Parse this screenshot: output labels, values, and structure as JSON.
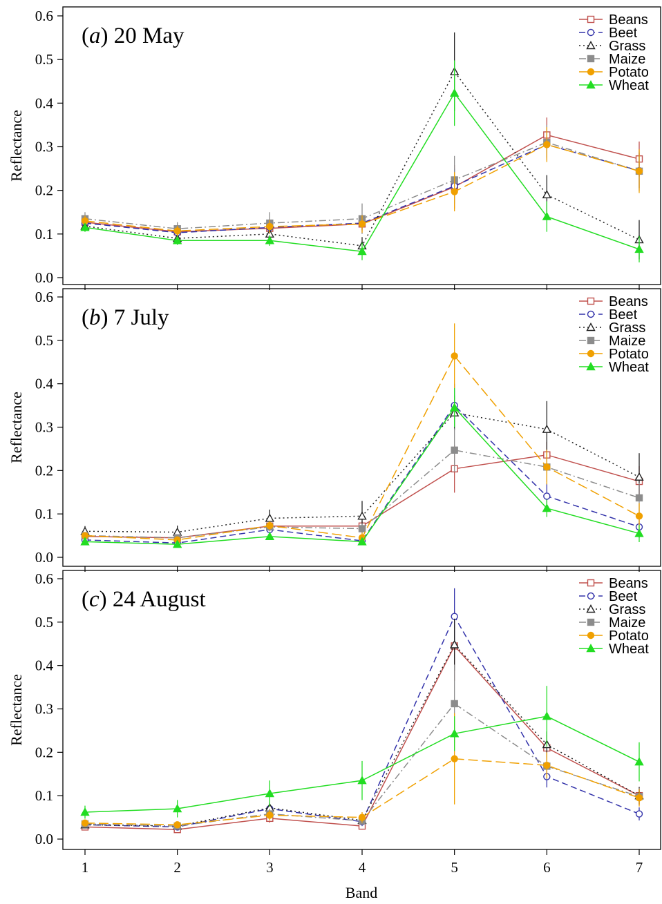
{
  "figure": {
    "xlabel": "Band"
  },
  "chart_data": [
    {
      "type": "line",
      "title_letter": "a",
      "title_rest": " 20 May",
      "xlabel": "Band",
      "ylabel": "Reflectance",
      "x": [
        1,
        2,
        3,
        4,
        5,
        6,
        7
      ],
      "ylim": [
        0,
        0.6
      ],
      "yticks": [
        "0.0",
        "0.1",
        "0.2",
        "0.3",
        "0.4",
        "0.5",
        "0.6"
      ],
      "legend_position": "top-right",
      "series": [
        {
          "name": "Beans",
          "color": "#c0504d",
          "marker": "square-open",
          "dash": "solid",
          "values": [
            0.127,
            0.105,
            0.113,
            0.123,
            0.208,
            0.327,
            0.272
          ],
          "err": [
            0.012,
            0.012,
            0.012,
            0.015,
            0.05,
            0.04,
            0.04
          ]
        },
        {
          "name": "Beet",
          "color": "#3333aa",
          "marker": "circle-open",
          "dash": "dashed",
          "values": [
            0.125,
            0.103,
            0.115,
            0.125,
            0.21,
            0.305,
            0.245
          ],
          "err": [
            0.01,
            0.01,
            0.01,
            0.015,
            0.04,
            0.03,
            0.04
          ]
        },
        {
          "name": "Grass",
          "color": "#222222",
          "marker": "triangle-open",
          "dash": "dotted",
          "values": [
            0.118,
            0.09,
            0.1,
            0.073,
            0.472,
            0.19,
            0.087
          ],
          "err": [
            0.012,
            0.012,
            0.015,
            0.02,
            0.09,
            0.045,
            0.045
          ]
        },
        {
          "name": "Maize",
          "color": "#8c8c8c",
          "marker": "square-filled",
          "dash": "dashdot",
          "values": [
            0.135,
            0.112,
            0.125,
            0.135,
            0.224,
            0.31,
            0.244
          ],
          "err": [
            0.015,
            0.015,
            0.025,
            0.035,
            0.055,
            0.04,
            0.045
          ]
        },
        {
          "name": "Potato",
          "color": "#f0a000",
          "marker": "circle-filled",
          "dash": "longdash",
          "values": [
            0.13,
            0.107,
            0.117,
            0.123,
            0.197,
            0.305,
            0.244
          ],
          "err": [
            0.012,
            0.012,
            0.015,
            0.02,
            0.045,
            0.04,
            0.05
          ]
        },
        {
          "name": "Wheat",
          "color": "#22dd22",
          "marker": "triangle-filled",
          "dash": "solid",
          "values": [
            0.115,
            0.085,
            0.085,
            0.06,
            0.423,
            0.14,
            0.065
          ],
          "err": [
            0.01,
            0.01,
            0.012,
            0.02,
            0.075,
            0.035,
            0.03
          ]
        }
      ]
    },
    {
      "type": "line",
      "title_letter": "b",
      "title_rest": " 7 July",
      "xlabel": "Band",
      "ylabel": "Reflectance",
      "x": [
        1,
        2,
        3,
        4,
        5,
        6,
        7
      ],
      "ylim": [
        0,
        0.6
      ],
      "yticks": [
        "0.0",
        "0.1",
        "0.2",
        "0.3",
        "0.4",
        "0.5",
        "0.6"
      ],
      "legend_position": "top-right",
      "series": [
        {
          "name": "Beans",
          "color": "#c0504d",
          "marker": "square-open",
          "dash": "solid",
          "values": [
            0.048,
            0.045,
            0.072,
            0.072,
            0.204,
            0.236,
            0.175
          ],
          "err": [
            0.008,
            0.008,
            0.01,
            0.012,
            0.055,
            0.03,
            0.035
          ]
        },
        {
          "name": "Beet",
          "color": "#3333aa",
          "marker": "circle-open",
          "dash": "dashed",
          "values": [
            0.04,
            0.033,
            0.064,
            0.038,
            0.35,
            0.141,
            0.07
          ],
          "err": [
            0.006,
            0.006,
            0.01,
            0.01,
            0.05,
            0.03,
            0.025
          ]
        },
        {
          "name": "Grass",
          "color": "#222222",
          "marker": "triangle-open",
          "dash": "dotted",
          "values": [
            0.06,
            0.058,
            0.09,
            0.095,
            0.333,
            0.295,
            0.185
          ],
          "err": [
            0.012,
            0.015,
            0.02,
            0.035,
            0.04,
            0.065,
            0.055
          ]
        },
        {
          "name": "Maize",
          "color": "#8c8c8c",
          "marker": "square-filled",
          "dash": "dashdot",
          "values": [
            0.05,
            0.045,
            0.07,
            0.066,
            0.247,
            0.208,
            0.137
          ],
          "err": [
            0.008,
            0.008,
            0.01,
            0.012,
            0.05,
            0.035,
            0.035
          ]
        },
        {
          "name": "Potato",
          "color": "#f0a000",
          "marker": "circle-filled",
          "dash": "longdash",
          "values": [
            0.05,
            0.04,
            0.073,
            0.045,
            0.464,
            0.208,
            0.095
          ],
          "err": [
            0.008,
            0.008,
            0.01,
            0.012,
            0.075,
            0.04,
            0.03
          ]
        },
        {
          "name": "Wheat",
          "color": "#22dd22",
          "marker": "triangle-filled",
          "dash": "solid",
          "values": [
            0.036,
            0.03,
            0.048,
            0.036,
            0.345,
            0.113,
            0.055
          ],
          "err": [
            0.006,
            0.006,
            0.008,
            0.008,
            0.045,
            0.02,
            0.02
          ]
        }
      ]
    },
    {
      "type": "line",
      "title_letter": "c",
      "title_rest": " 24 August",
      "xlabel": "Band",
      "ylabel": "Reflectance",
      "x": [
        1,
        2,
        3,
        4,
        5,
        6,
        7
      ],
      "ylim": [
        0,
        0.6
      ],
      "yticks": [
        "0.0",
        "0.1",
        "0.2",
        "0.3",
        "0.4",
        "0.5",
        "0.6"
      ],
      "xticks": [
        "1",
        "2",
        "3",
        "4",
        "5",
        "6",
        "7"
      ],
      "legend_position": "top-right",
      "series": [
        {
          "name": "Beans",
          "color": "#c0504d",
          "marker": "square-open",
          "dash": "solid",
          "values": [
            0.028,
            0.022,
            0.048,
            0.03,
            0.445,
            0.21,
            0.1
          ],
          "err": [
            0.006,
            0.006,
            0.01,
            0.008,
            0.08,
            0.03,
            0.02
          ]
        },
        {
          "name": "Beet",
          "color": "#3333aa",
          "marker": "circle-open",
          "dash": "dashed",
          "values": [
            0.033,
            0.028,
            0.07,
            0.04,
            0.513,
            0.144,
            0.058
          ],
          "err": [
            0.006,
            0.006,
            0.012,
            0.01,
            0.065,
            0.025,
            0.015
          ]
        },
        {
          "name": "Grass",
          "color": "#222222",
          "marker": "triangle-open",
          "dash": "dotted",
          "values": [
            0.033,
            0.03,
            0.072,
            0.043,
            0.448,
            0.218,
            0.1
          ],
          "err": [
            0.006,
            0.006,
            0.012,
            0.01,
            0.06,
            0.03,
            0.02
          ]
        },
        {
          "name": "Maize",
          "color": "#8c8c8c",
          "marker": "square-filled",
          "dash": "dashdot",
          "values": [
            0.035,
            0.03,
            0.058,
            0.042,
            0.312,
            0.168,
            0.098
          ],
          "err": [
            0.006,
            0.006,
            0.012,
            0.01,
            0.09,
            0.03,
            0.02
          ]
        },
        {
          "name": "Potato",
          "color": "#f0a000",
          "marker": "circle-filled",
          "dash": "longdash",
          "values": [
            0.037,
            0.033,
            0.055,
            0.05,
            0.185,
            0.17,
            0.095
          ],
          "err": [
            0.006,
            0.006,
            0.012,
            0.012,
            0.105,
            0.03,
            0.02
          ]
        },
        {
          "name": "Wheat",
          "color": "#22dd22",
          "marker": "triangle-filled",
          "dash": "solid",
          "values": [
            0.062,
            0.07,
            0.105,
            0.135,
            0.243,
            0.283,
            0.178
          ],
          "err": [
            0.015,
            0.02,
            0.03,
            0.045,
            0.04,
            0.07,
            0.045
          ]
        }
      ]
    }
  ]
}
